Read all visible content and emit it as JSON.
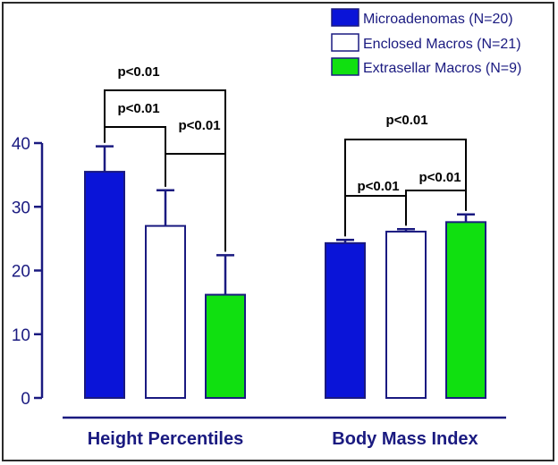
{
  "chart_data": {
    "type": "bar",
    "categories": [
      "Height Percentiles",
      "Body Mass Index"
    ],
    "series": [
      {
        "name": "Microadenomas (N=20)",
        "color": "#0a14d8",
        "values": [
          35.5,
          24.3
        ],
        "errors": [
          4.0,
          0.5
        ]
      },
      {
        "name": "Enclosed Macros (N=21)",
        "color": "#ffffff",
        "values": [
          27.0,
          26.1
        ],
        "errors": [
          5.6,
          0.4
        ]
      },
      {
        "name": "Extrasellar Macros (N=9)",
        "color": "#10e010",
        "values": [
          16.2,
          27.6
        ],
        "errors": [
          6.2,
          1.2
        ]
      }
    ],
    "yticks": [
      0,
      10,
      20,
      30,
      40
    ],
    "ylim": [
      0,
      40
    ],
    "legend_position": "top-right",
    "axis_color": "#1a1a80",
    "significance": [
      {
        "group": 0,
        "from": 0,
        "to": 2,
        "label": "p<0.01"
      },
      {
        "group": 0,
        "from": 0,
        "to": 1,
        "label": "p<0.01"
      },
      {
        "group": 0,
        "from": 1,
        "to": 2,
        "label": "p<0.01"
      },
      {
        "group": 1,
        "from": 0,
        "to": 2,
        "label": "p<0.01"
      },
      {
        "group": 1,
        "from": 0,
        "to": 1,
        "label": "p<0.01"
      },
      {
        "group": 1,
        "from": 1,
        "to": 2,
        "label": "p<0.01"
      }
    ]
  }
}
